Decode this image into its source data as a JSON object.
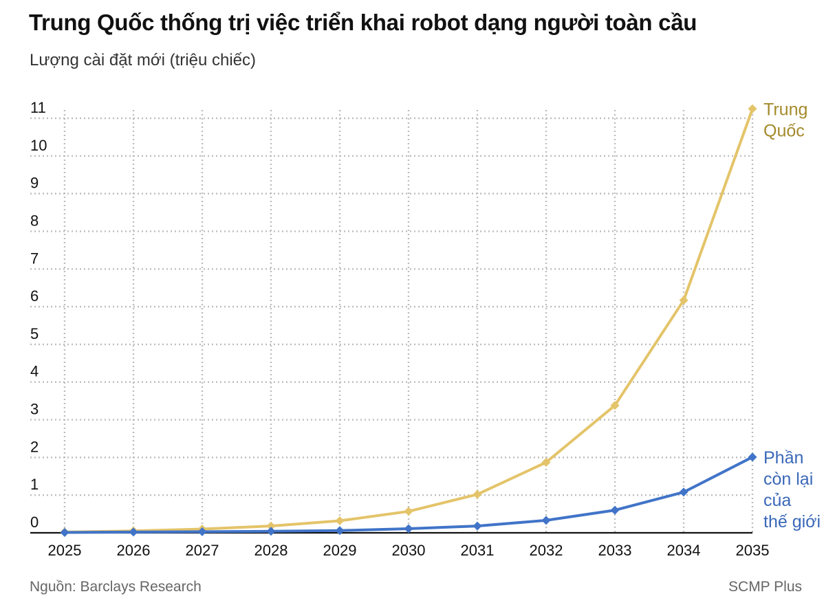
{
  "header": {
    "title": "Trung Quốc thống trị việc triển khai robot dạng người toàn cầu",
    "subtitle": "Lượng cài đặt mới (triệu chiếc)"
  },
  "footer": {
    "source": "Nguồn: Barclays Research",
    "credit": "SCMP Plus"
  },
  "colors": {
    "china": "#e4c46a",
    "china_label": "#a48a2c",
    "rest": "#4174c8",
    "rest_label": "#3a68b8",
    "grid": "#bdbdbd",
    "axis": "#111111"
  },
  "chart_data": {
    "type": "line",
    "title": "Trung Quốc thống trị việc triển khai robot dạng người toàn cầu",
    "ylabel": "Lượng cài đặt mới (triệu chiếc)",
    "xlabel": "",
    "x": [
      "2025",
      "2026",
      "2027",
      "2028",
      "2029",
      "2030",
      "2031",
      "2032",
      "2033",
      "2034",
      "2035"
    ],
    "ylim": [
      0,
      11
    ],
    "yticks": [
      0,
      1,
      2,
      3,
      4,
      5,
      6,
      7,
      8,
      9,
      10,
      11
    ],
    "grid": true,
    "series": [
      {
        "name": "Trung Quốc",
        "label_lines": [
          "Trung",
          "Quốc"
        ],
        "color": "#e4c46a",
        "values": [
          0.02,
          0.05,
          0.1,
          0.18,
          0.32,
          0.57,
          1.02,
          1.87,
          3.38,
          6.17,
          11.25
        ]
      },
      {
        "name": "Phần còn lại của thế giới",
        "label_lines": [
          "Phần",
          "còn lại",
          "của",
          "thế giới"
        ],
        "color": "#4174c8",
        "values": [
          0.01,
          0.02,
          0.03,
          0.04,
          0.06,
          0.11,
          0.18,
          0.33,
          0.6,
          1.08,
          2.01
        ]
      }
    ]
  }
}
